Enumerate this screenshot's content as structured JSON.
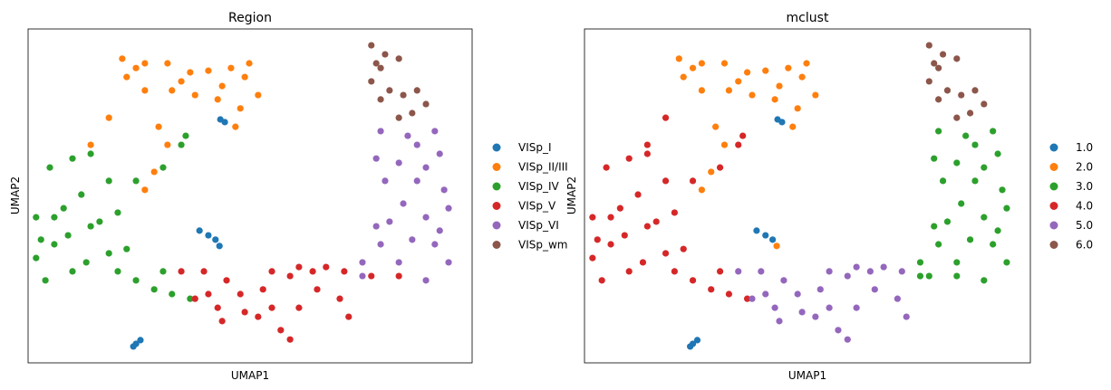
{
  "chart_data": [
    {
      "type": "scatter",
      "title": "Region",
      "xlabel": "UMAP1",
      "ylabel": "UMAP2",
      "color_by": "region",
      "legend_placement": "right",
      "grid": false,
      "ticks": false,
      "categories": [
        "VISp_I",
        "VISp_II/III",
        "VISp_IV",
        "VISp_V",
        "VISp_VI",
        "VISp_wm"
      ],
      "colors": [
        "#1f77b4",
        "#ff7f0e",
        "#2ca02c",
        "#d62728",
        "#9467bd",
        "#8c564b"
      ]
    },
    {
      "type": "scatter",
      "title": "mclust",
      "xlabel": "UMAP1",
      "ylabel": "UMAP2",
      "color_by": "mclust",
      "legend_placement": "right",
      "grid": false,
      "ticks": false,
      "categories": [
        "1.0",
        "2.0",
        "3.0",
        "4.0",
        "5.0",
        "6.0"
      ],
      "colors": [
        "#1f77b4",
        "#ff7f0e",
        "#2ca02c",
        "#d62728",
        "#9467bd",
        "#8c564b"
      ]
    }
  ],
  "points_fields": [
    "UMAP1",
    "UMAP2",
    "region",
    "mclust"
  ],
  "points": [
    [
      2.12,
      9.11,
      "VISp_II/III",
      "2.0"
    ],
    [
      2.63,
      8.97,
      "VISp_II/III",
      "2.0"
    ],
    [
      3.14,
      8.97,
      "VISp_II/III",
      "2.0"
    ],
    [
      3.65,
      8.7,
      "VISp_II/III",
      "2.0"
    ],
    [
      4.06,
      8.75,
      "VISp_II/III",
      "2.0"
    ],
    [
      4.57,
      8.83,
      "VISp_II/III",
      "2.0"
    ],
    [
      4.88,
      8.56,
      "VISp_II/III",
      "2.0"
    ],
    [
      5.18,
      8.02,
      "VISp_II/III",
      "2.0"
    ],
    [
      4.78,
      7.62,
      "VISp_II/III",
      "2.0"
    ],
    [
      4.67,
      7.07,
      "VISp_II/III",
      "2.0"
    ],
    [
      4.27,
      7.89,
      "VISp_II/III",
      "2.0"
    ],
    [
      3.76,
      8.02,
      "VISp_II/III",
      "2.0"
    ],
    [
      3.24,
      8.16,
      "VISp_II/III",
      "2.0"
    ],
    [
      2.63,
      8.16,
      "VISp_II/III",
      "2.0"
    ],
    [
      2.22,
      8.56,
      "VISp_II/III",
      "2.0"
    ],
    [
      2.94,
      7.07,
      "VISp_II/III",
      "2.0"
    ],
    [
      3.14,
      6.53,
      "VISp_II/III",
      "2.0"
    ],
    [
      2.84,
      5.72,
      "VISp_II/III",
      "2.0"
    ],
    [
      2.63,
      5.18,
      "VISp_II/III",
      "2.0"
    ],
    [
      1.82,
      7.34,
      "VISp_II/III",
      "4.0"
    ],
    [
      1.41,
      6.53,
      "VISp_II/III",
      "4.0"
    ],
    [
      4.37,
      8.29,
      "VISp_II/III",
      "2.0"
    ],
    [
      3.45,
      8.43,
      "VISp_II/III",
      "2.0"
    ],
    [
      4.98,
      8.97,
      "VISp_II/III",
      "2.0"
    ],
    [
      2.43,
      8.83,
      "VISp_II/III",
      "2.0"
    ],
    [
      0.49,
      5.85,
      "VISp_IV",
      "4.0"
    ],
    [
      1.0,
      6.12,
      "VISp_IV",
      "4.0"
    ],
    [
      1.41,
      6.26,
      "VISp_IV",
      "4.0"
    ],
    [
      0.59,
      4.36,
      "VISp_IV",
      "4.0"
    ],
    [
      0.18,
      4.36,
      "VISp_IV",
      "4.0"
    ],
    [
      0.8,
      4.63,
      "VISp_IV",
      "4.0"
    ],
    [
      1.2,
      5.04,
      "VISp_IV",
      "4.0"
    ],
    [
      1.82,
      5.45,
      "VISp_IV",
      "4.0"
    ],
    [
      2.43,
      5.45,
      "VISp_IV",
      "4.0"
    ],
    [
      3.04,
      5.85,
      "VISp_IV",
      "4.0"
    ],
    [
      3.45,
      6.53,
      "VISp_IV",
      "4.0"
    ],
    [
      3.55,
      6.8,
      "VISp_IV",
      "4.0"
    ],
    [
      2.02,
      4.5,
      "VISp_IV",
      "4.0"
    ],
    [
      1.61,
      4.23,
      "VISp_IV",
      "4.0"
    ],
    [
      0.59,
      3.55,
      "VISp_IV",
      "4.0"
    ],
    [
      0.18,
      3.14,
      "VISp_IV",
      "4.0"
    ],
    [
      0.39,
      2.47,
      "VISp_IV",
      "4.0"
    ],
    [
      1.0,
      2.74,
      "VISp_IV",
      "4.0"
    ],
    [
      1.31,
      3.01,
      "VISp_IV",
      "4.0"
    ],
    [
      1.82,
      3.28,
      "VISp_IV",
      "4.0"
    ],
    [
      2.02,
      2.74,
      "VISp_IV",
      "4.0"
    ],
    [
      2.43,
      2.47,
      "VISp_IV",
      "4.0"
    ],
    [
      2.84,
      2.2,
      "VISp_IV",
      "4.0"
    ],
    [
      3.24,
      2.06,
      "VISp_IV",
      "4.0"
    ],
    [
      3.65,
      1.92,
      "VISp_IV",
      "4.0"
    ],
    [
      0.9,
      3.82,
      "VISp_IV",
      "4.0"
    ],
    [
      1.41,
      4.09,
      "VISp_IV",
      "4.0"
    ],
    [
      0.29,
      3.69,
      "VISp_IV",
      "4.0"
    ],
    [
      2.22,
      3.41,
      "VISp_IV",
      "4.0"
    ],
    [
      3.04,
      2.74,
      "VISp_IV",
      "4.0"
    ],
    [
      3.45,
      2.74,
      "VISp_V",
      "5.0"
    ],
    [
      3.96,
      2.74,
      "VISp_V",
      "5.0"
    ],
    [
      4.47,
      2.47,
      "VISp_V",
      "5.0"
    ],
    [
      4.27,
      1.65,
      "VISp_V",
      "5.0"
    ],
    [
      4.37,
      1.25,
      "VISp_V",
      "5.0"
    ],
    [
      4.88,
      1.52,
      "VISp_V",
      "5.0"
    ],
    [
      5.29,
      2.2,
      "VISp_V",
      "5.0"
    ],
    [
      5.49,
      2.74,
      "VISp_V",
      "5.0"
    ],
    [
      5.9,
      2.6,
      "VISp_V",
      "5.0"
    ],
    [
      5.49,
      1.65,
      "VISp_V",
      "5.0"
    ],
    [
      5.18,
      1.38,
      "VISp_V",
      "5.0"
    ],
    [
      5.69,
      0.98,
      "VISp_V",
      "5.0"
    ],
    [
      5.9,
      0.7,
      "VISp_V",
      "5.0"
    ],
    [
      6.1,
      1.65,
      "VISp_V",
      "5.0"
    ],
    [
      6.41,
      2.74,
      "VISp_V",
      "5.0"
    ],
    [
      6.71,
      2.87,
      "VISp_V",
      "5.0"
    ],
    [
      7.12,
      2.74,
      "VISp_V",
      "5.0"
    ],
    [
      7.02,
      1.92,
      "VISp_V",
      "5.0"
    ],
    [
      7.22,
      1.38,
      "VISp_V",
      "5.0"
    ],
    [
      6.51,
      2.2,
      "VISp_V",
      "5.0"
    ],
    [
      4.06,
      2.06,
      "VISp_V",
      "5.0"
    ],
    [
      4.78,
      2.06,
      "VISp_V",
      "5.0"
    ],
    [
      6.1,
      2.87,
      "VISp_V",
      "5.0"
    ],
    [
      7.73,
      2.6,
      "VISp_V",
      "3.0"
    ],
    [
      8.35,
      2.6,
      "VISp_V",
      "3.0"
    ],
    [
      3.76,
      1.92,
      "VISp_V",
      "5.0"
    ],
    [
      7.94,
      6.94,
      "VISp_VI",
      "3.0"
    ],
    [
      8.55,
      6.8,
      "VISp_VI",
      "3.0"
    ],
    [
      9.16,
      6.94,
      "VISp_VI",
      "3.0"
    ],
    [
      9.27,
      6.26,
      "VISp_VI",
      "3.0"
    ],
    [
      8.96,
      5.85,
      "VISp_VI",
      "3.0"
    ],
    [
      8.35,
      5.99,
      "VISp_VI",
      "3.0"
    ],
    [
      7.84,
      6.12,
      "VISp_VI",
      "3.0"
    ],
    [
      8.04,
      5.45,
      "VISp_VI",
      "3.0"
    ],
    [
      8.76,
      5.45,
      "VISp_VI",
      "3.0"
    ],
    [
      9.37,
      5.18,
      "VISp_VI",
      "3.0"
    ],
    [
      9.47,
      4.63,
      "VISp_VI",
      "3.0"
    ],
    [
      8.96,
      4.36,
      "VISp_VI",
      "3.0"
    ],
    [
      8.45,
      4.77,
      "VISp_VI",
      "3.0"
    ],
    [
      8.14,
      4.23,
      "VISp_VI",
      "3.0"
    ],
    [
      7.94,
      3.55,
      "VISp_VI",
      "3.0"
    ],
    [
      7.53,
      3.01,
      "VISp_VI",
      "3.0"
    ],
    [
      8.65,
      3.69,
      "VISp_VI",
      "3.0"
    ],
    [
      9.16,
      3.55,
      "VISp_VI",
      "3.0"
    ],
    [
      9.47,
      3.01,
      "VISp_VI",
      "3.0"
    ],
    [
      8.96,
      2.47,
      "VISp_VI",
      "3.0"
    ],
    [
      8.35,
      3.01,
      "VISp_VI",
      "3.0"
    ],
    [
      7.84,
      4.09,
      "VISp_VI",
      "3.0"
    ],
    [
      9.27,
      3.96,
      "VISp_VI",
      "3.0"
    ],
    [
      7.53,
      2.6,
      "VISp_VI",
      "3.0"
    ],
    [
      8.76,
      6.53,
      "VISp_VI",
      "3.0"
    ],
    [
      7.73,
      9.51,
      "VISp_wm",
      "6.0"
    ],
    [
      8.04,
      9.24,
      "VISp_wm",
      "6.0"
    ],
    [
      8.35,
      9.11,
      "VISp_wm",
      "6.0"
    ],
    [
      7.94,
      8.83,
      "VISp_wm",
      "6.0"
    ],
    [
      7.73,
      8.43,
      "VISp_wm",
      "6.0"
    ],
    [
      8.14,
      8.16,
      "VISp_wm",
      "6.0"
    ],
    [
      8.45,
      8.02,
      "VISp_wm",
      "6.0"
    ],
    [
      8.76,
      8.16,
      "VISp_wm",
      "6.0"
    ],
    [
      8.96,
      7.75,
      "VISp_wm",
      "6.0"
    ],
    [
      8.65,
      7.48,
      "VISp_wm",
      "6.0"
    ],
    [
      8.35,
      7.34,
      "VISp_wm",
      "6.0"
    ],
    [
      7.94,
      7.89,
      "VISp_wm",
      "6.0"
    ],
    [
      7.84,
      8.97,
      "VISp_wm",
      "6.0"
    ],
    [
      3.86,
      3.96,
      "VISp_I",
      "1.0"
    ],
    [
      4.06,
      3.82,
      "VISp_I",
      "1.0"
    ],
    [
      4.22,
      3.69,
      "VISp_I",
      "1.0"
    ],
    [
      4.31,
      3.5,
      "VISp_I",
      "2.0"
    ],
    [
      2.43,
      0.57,
      "VISp_I",
      "1.0"
    ],
    [
      2.37,
      0.49,
      "VISp_I",
      "1.0"
    ],
    [
      2.53,
      0.68,
      "VISp_I",
      "1.0"
    ],
    [
      4.33,
      7.29,
      "VISp_I",
      "1.0"
    ],
    [
      4.43,
      7.21,
      "VISp_I",
      "1.0"
    ]
  ]
}
